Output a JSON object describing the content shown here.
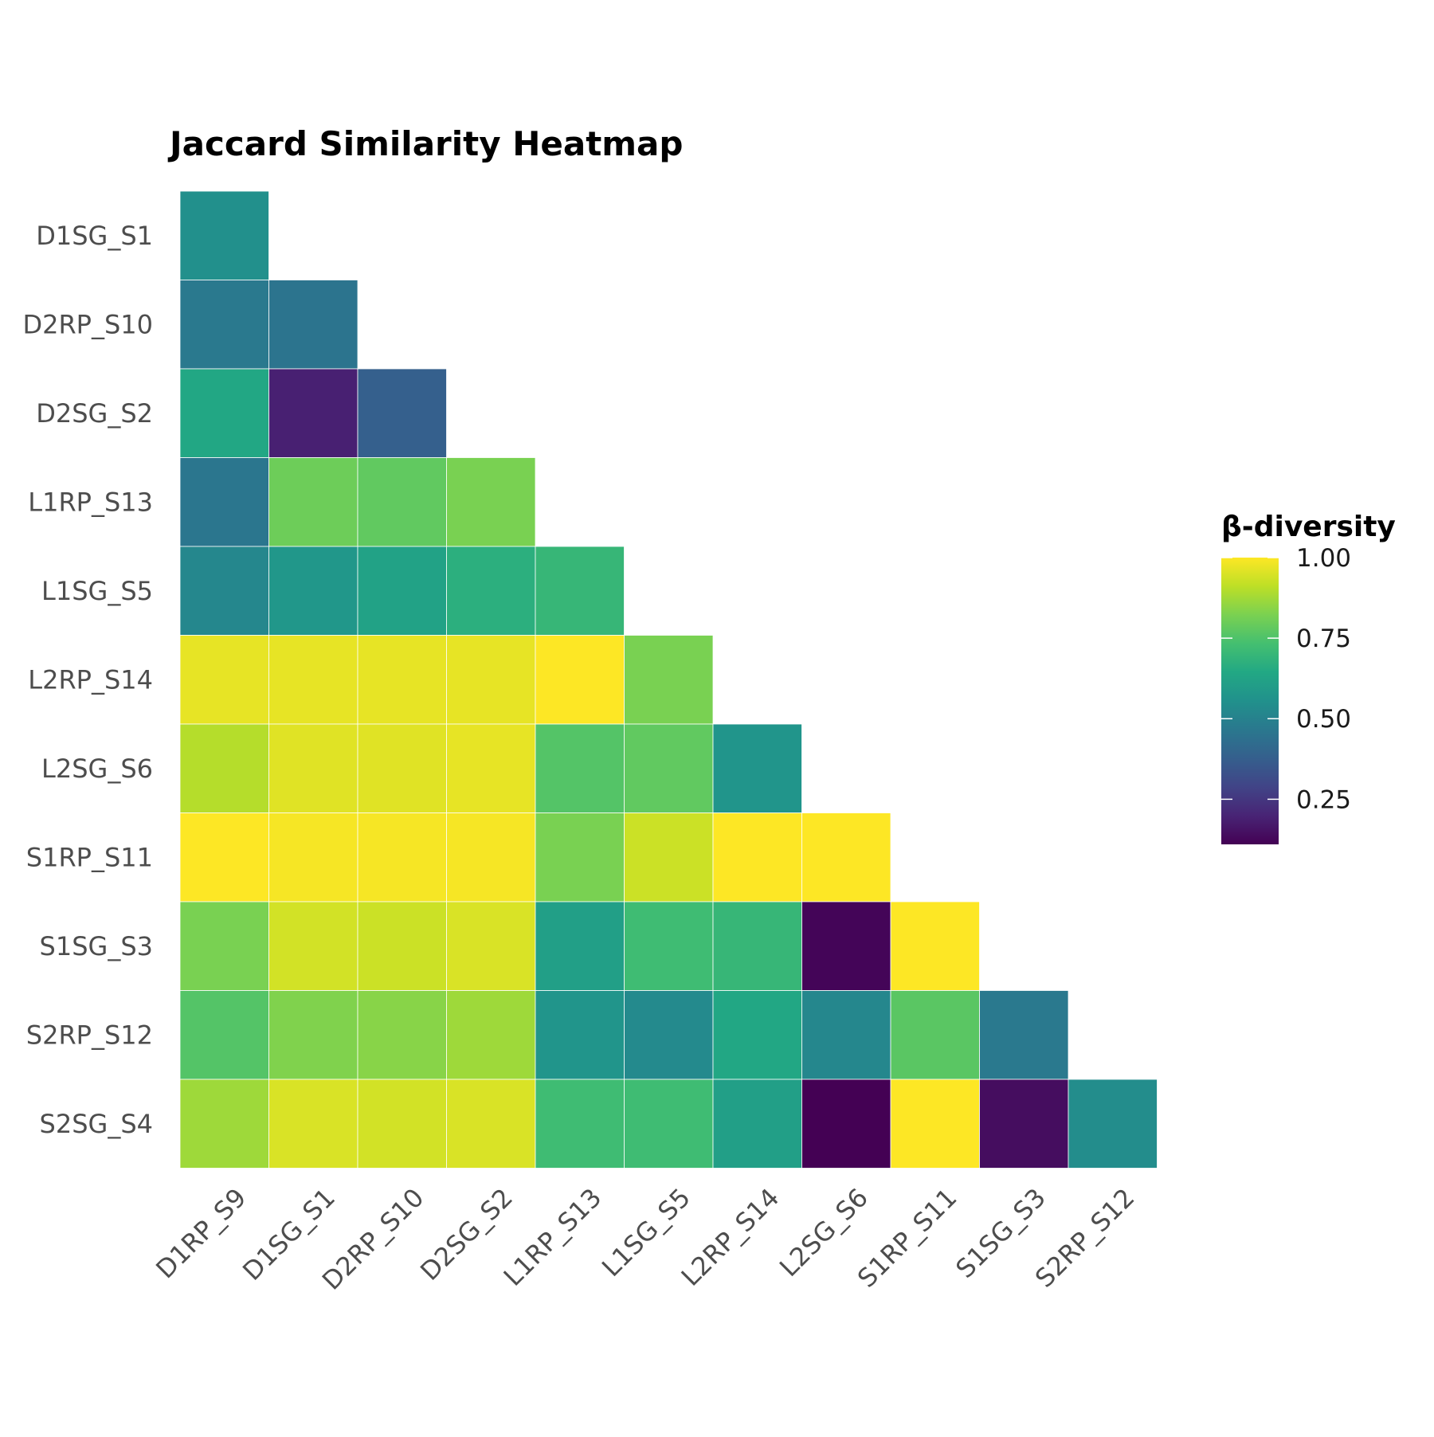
{
  "chart_data": {
    "type": "heatmap",
    "title": "Jaccard Similarity Heatmap",
    "x_labels": [
      "D1RP_S9",
      "D1SG_S1",
      "D2RP_S10",
      "D2SG_S2",
      "L1RP_S13",
      "L1SG_S5",
      "L2RP_S14",
      "L2SG_S6",
      "S1RP_S11",
      "S1SG_S3",
      "S2RP_S12"
    ],
    "y_labels": [
      "D1SG_S1",
      "D2RP_S10",
      "D2SG_S2",
      "L1RP_S13",
      "L1SG_S5",
      "L2RP_S14",
      "L2SG_S6",
      "S1RP_S11",
      "S1SG_S3",
      "S2RP_S12",
      "S2SG_S4"
    ],
    "values": [
      [
        0.55
      ],
      [
        0.47,
        0.45
      ],
      [
        0.64,
        0.19,
        0.38
      ],
      [
        0.46,
        0.8,
        0.78,
        0.82
      ],
      [
        0.52,
        0.58,
        0.62,
        0.67,
        0.7
      ],
      [
        0.97,
        0.97,
        0.97,
        0.97,
        1.0,
        0.82
      ],
      [
        0.9,
        0.96,
        0.96,
        0.97,
        0.76,
        0.78,
        0.57
      ],
      [
        1.0,
        0.99,
        0.99,
        0.99,
        0.82,
        0.93,
        1.0,
        1.0
      ],
      [
        0.82,
        0.94,
        0.93,
        0.95,
        0.61,
        0.72,
        0.7,
        0.12,
        1.0
      ],
      [
        0.76,
        0.83,
        0.84,
        0.87,
        0.57,
        0.53,
        0.64,
        0.52,
        0.77,
        0.47
      ],
      [
        0.87,
        0.95,
        0.94,
        0.95,
        0.72,
        0.72,
        0.61,
        0.11,
        1.0,
        0.14,
        0.54
      ]
    ],
    "legend": {
      "title": "β-diversity",
      "ticks": [
        1.0,
        0.75,
        0.5,
        0.25
      ],
      "tick_labels": [
        "1.00",
        "0.75",
        "0.50",
        "0.25"
      ],
      "range": [
        0.11,
        1.0
      ],
      "placement": "right"
    },
    "colormap": "viridis",
    "layout": "lower-triangle",
    "grid": false
  }
}
